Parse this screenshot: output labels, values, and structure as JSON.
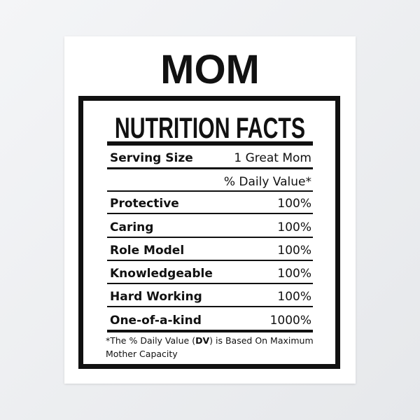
{
  "title": "MOM",
  "label": {
    "title": "NUTRITION FACTS",
    "serving": {
      "label": "Serving Size",
      "value": "1 Great  Mom"
    },
    "dv_header": "% Daily Value*",
    "rows": [
      {
        "name": "Protective",
        "value": "100%"
      },
      {
        "name": "Caring",
        "value": "100%"
      },
      {
        "name": "Role Model",
        "value": "100%"
      },
      {
        "name": "Knowledgeable",
        "value": "100%"
      },
      {
        "name": "Hard Working",
        "value": "100%"
      },
      {
        "name": "One-of-a-kind",
        "value": "1000%"
      }
    ],
    "footnote": {
      "before": "*The % Daily Value (",
      "bold": "DV",
      "after": ") is Based On Maximum Mother Capacity"
    }
  }
}
